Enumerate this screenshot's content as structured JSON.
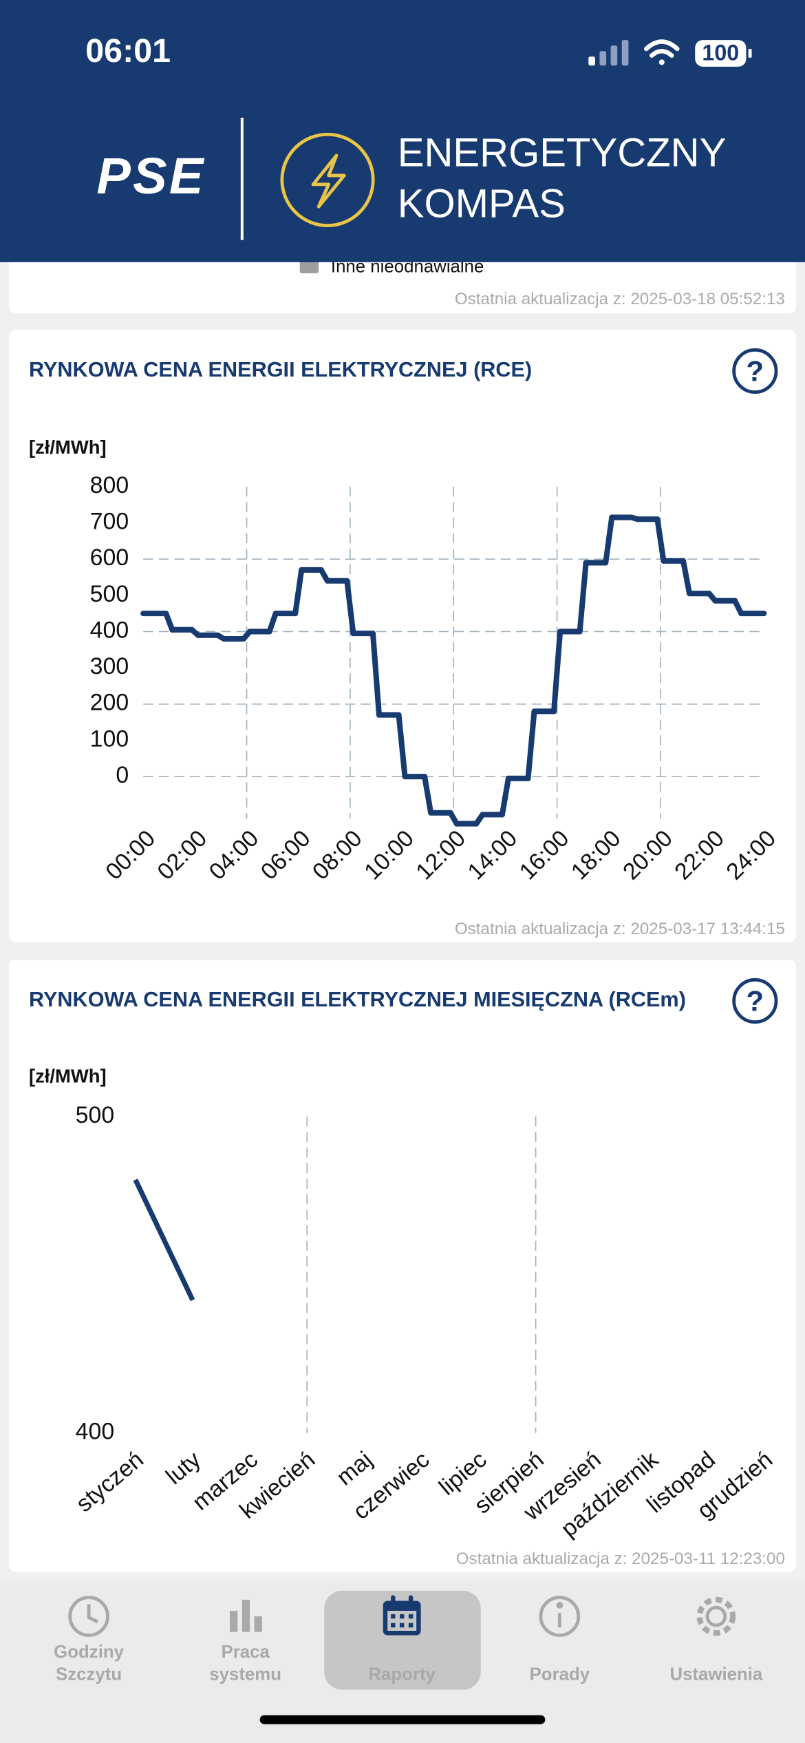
{
  "status_bar": {
    "time": "06:01",
    "battery": "100"
  },
  "header": {
    "logo": "PSE",
    "title_lines": [
      "ENERGETYCZNY",
      "KOMPAS"
    ]
  },
  "cards": [
    {
      "legend_item": "Inne nieodnawialne",
      "updated": "Ostatnia aktualizacja z: 2025-03-18 05:52:13"
    },
    {
      "title": "RYNKOWA CENA ENERGII ELEKTRYCZNEJ (RCE)",
      "updated": "Ostatnia aktualizacja z: 2025-03-17 13:44:15",
      "chart": {
        "type": "step",
        "y_label": "[zł/MWh]",
        "color": "#173a70",
        "x": [
          0,
          1,
          2,
          3,
          4,
          5,
          6,
          7,
          8,
          9,
          10,
          11,
          12,
          13,
          14,
          15,
          16,
          17,
          18,
          19,
          20,
          21,
          22,
          23
        ],
        "values": [
          450,
          405,
          390,
          380,
          400,
          450,
          570,
          540,
          395,
          170,
          0,
          -100,
          -130,
          -105,
          -5,
          180,
          400,
          590,
          715,
          710,
          595,
          505,
          485,
          450
        ],
        "xlim": [
          0,
          24
        ],
        "xticks": [
          {
            "value": 0,
            "label": "00:00"
          },
          {
            "value": 2,
            "label": "02:00"
          },
          {
            "value": 4,
            "label": "04:00"
          },
          {
            "value": 6,
            "label": "06:00"
          },
          {
            "value": 8,
            "label": "08:00"
          },
          {
            "value": 10,
            "label": "10:00"
          },
          {
            "value": 12,
            "label": "12:00"
          },
          {
            "value": 14,
            "label": "14:00"
          },
          {
            "value": 16,
            "label": "16:00"
          },
          {
            "value": 18,
            "label": "18:00"
          },
          {
            "value": 20,
            "label": "20:00"
          },
          {
            "value": 22,
            "label": "22:00"
          },
          {
            "value": 24,
            "label": "24:00"
          }
        ],
        "xgrid": [
          4,
          8,
          12,
          16,
          20
        ],
        "ylim": [
          -150,
          800
        ],
        "yticks": [
          0,
          100,
          200,
          300,
          400,
          500,
          600,
          700,
          800
        ],
        "ygrid": [
          0,
          200,
          400,
          600
        ]
      }
    },
    {
      "title": "RYNKOWA CENA ENERGII ELEKTRYCZNEJ MIESIĘCZNA (RCEm)",
      "updated": "Ostatnia aktualizacja z: 2025-03-11 12:23:00",
      "chart": {
        "type": "line",
        "y_label": "[zł/MWh]",
        "color": "#173a70",
        "categories": [
          "styczeń",
          "luty",
          "marzec",
          "kwiecień",
          "maj",
          "czerwiec",
          "lipiec",
          "sierpień",
          "wrzesień",
          "październik",
          "listopad",
          "grudzień"
        ],
        "values": [
          480,
          442,
          null,
          null,
          null,
          null,
          null,
          null,
          null,
          null,
          null,
          null
        ],
        "xgrid": [
          3,
          7
        ],
        "ylim": [
          400,
          500
        ],
        "yticks": [
          400,
          500
        ]
      }
    }
  ],
  "nav": [
    {
      "label": [
        "Godziny",
        "Szczytu"
      ]
    },
    {
      "label": [
        "Praca",
        "systemu"
      ]
    },
    {
      "label": [
        "Raporty"
      ],
      "active": true
    },
    {
      "label": [
        "Porady"
      ]
    },
    {
      "label": [
        "Ustawienia"
      ]
    }
  ]
}
